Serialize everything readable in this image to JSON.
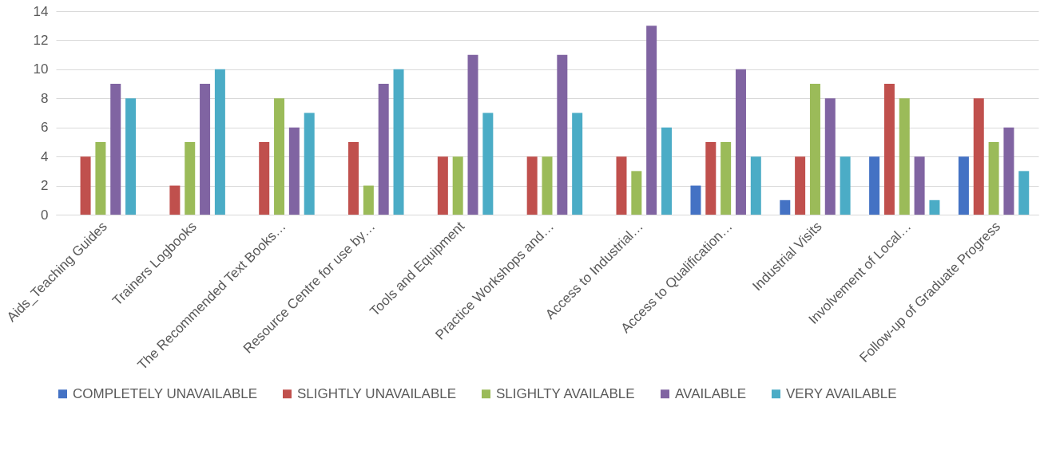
{
  "chart_data": {
    "type": "bar",
    "categories": [
      "Aids_Teaching Guides",
      "Trainers Logbooks",
      "The Recommended Text Books…",
      "Resource Centre for use by…",
      "Tools and Equipment",
      "Practice Workshops and…",
      "Access to Industrial…",
      "Access to Qualification…",
      "Industrial Visits",
      "Involvement of Local…",
      "Follow-up of Graduate Progress"
    ],
    "series": [
      {
        "name": "COMPLETELY UNAVAILABLE",
        "color": "#4472c4",
        "values": [
          0,
          0,
          0,
          0,
          0,
          0,
          0,
          2,
          1,
          4,
          4
        ]
      },
      {
        "name": "SLIGHTLY UNAVAILABLE",
        "color": "#c0504d",
        "values": [
          4,
          2,
          5,
          5,
          4,
          4,
          4,
          5,
          4,
          9,
          8
        ]
      },
      {
        "name": "SLIGHLTY AVAILABLE",
        "color": "#9bbb59",
        "values": [
          5,
          5,
          8,
          2,
          4,
          4,
          3,
          5,
          9,
          8,
          5
        ]
      },
      {
        "name": "AVAILABLE",
        "color": "#8064a2",
        "values": [
          9,
          9,
          6,
          9,
          11,
          11,
          13,
          10,
          8,
          4,
          6
        ]
      },
      {
        "name": "VERY AVAILABLE",
        "color": "#4bacc6",
        "values": [
          8,
          10,
          7,
          10,
          7,
          7,
          6,
          4,
          4,
          1,
          3
        ]
      }
    ],
    "ylim": [
      0,
      14
    ],
    "yticks": [
      0,
      2,
      4,
      6,
      8,
      10,
      12,
      14
    ],
    "grid": "y",
    "legend": "bottom"
  }
}
